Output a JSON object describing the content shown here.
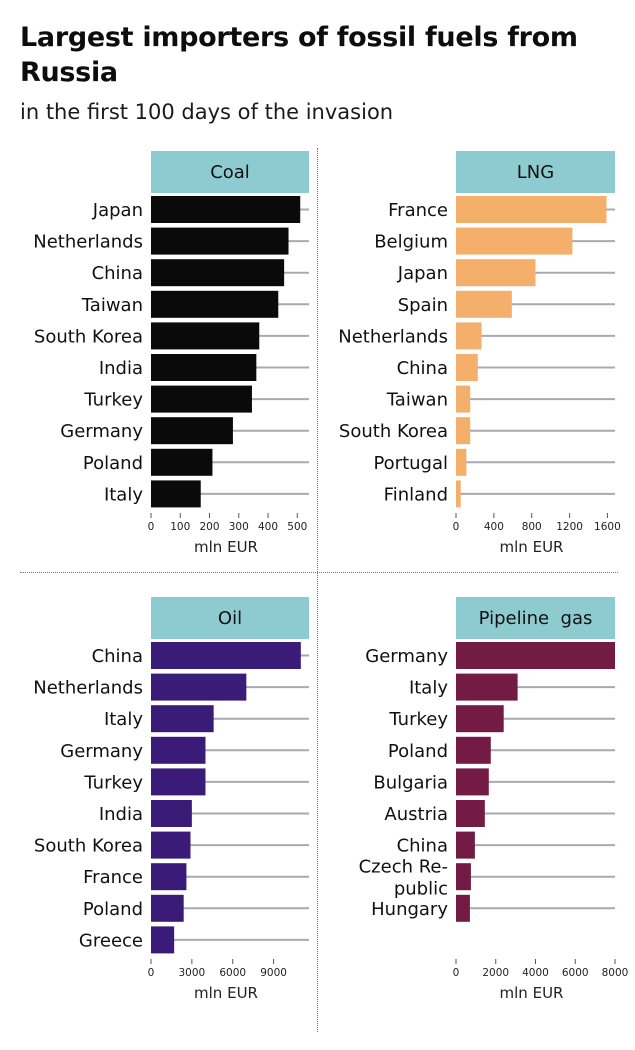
{
  "title": "Largest importers of fossil fuels from Russia",
  "subtitle": "in the first 100 days of the invasion",
  "chart_data": [
    {
      "type": "bar",
      "orientation": "horizontal",
      "title": "Coal",
      "xlabel": "mln EUR",
      "categories": [
        "Japan",
        "Netherlands",
        "China",
        "Taiwan",
        "South Korea",
        "India",
        "Turkey",
        "Germany",
        "Poland",
        "Italy"
      ],
      "values": [
        510,
        470,
        455,
        435,
        370,
        360,
        345,
        280,
        210,
        170
      ],
      "xlim": [
        0,
        540
      ],
      "ticks": [
        0,
        100,
        200,
        300,
        400,
        500
      ],
      "color": "#0a0a0a"
    },
    {
      "type": "bar",
      "orientation": "horizontal",
      "title": "LNG",
      "xlabel": "mln EUR",
      "categories": [
        "France",
        "Belgium",
        "Japan",
        "Spain",
        "Netherlands",
        "China",
        "Taiwan",
        "South Korea",
        "Portugal",
        "Finland"
      ],
      "values": [
        1590,
        1230,
        840,
        590,
        270,
        230,
        150,
        150,
        110,
        50
      ],
      "xlim": [
        0,
        1680
      ],
      "ticks": [
        0,
        400,
        800,
        1200,
        1600
      ],
      "color": "#f4b06a"
    },
    {
      "type": "bar",
      "orientation": "horizontal",
      "title": "Oil",
      "xlabel": "mln EUR",
      "categories": [
        "China",
        "Netherlands",
        "Italy",
        "Germany",
        "Turkey",
        "India",
        "South Korea",
        "France",
        "Poland",
        "Greece"
      ],
      "values": [
        11000,
        7000,
        4600,
        4000,
        4000,
        3000,
        2900,
        2600,
        2400,
        1700
      ],
      "xlim": [
        0,
        11600
      ],
      "ticks": [
        0,
        3000,
        6000,
        9000
      ],
      "color": "#3a1c78"
    },
    {
      "type": "bar",
      "orientation": "horizontal",
      "title": "Pipeline  gas",
      "xlabel": "mln EUR",
      "categories": [
        "Germany",
        "Italy",
        "Turkey",
        "Poland",
        "Bulgaria",
        "Austria",
        "China",
        "Czech Re-\npublic",
        "Hungary"
      ],
      "values": [
        8000,
        3100,
        2400,
        1750,
        1650,
        1450,
        950,
        750,
        700
      ],
      "xlim": [
        0,
        8000
      ],
      "ticks": [
        0,
        2000,
        4000,
        6000,
        8000
      ],
      "color": "#731a45"
    }
  ]
}
